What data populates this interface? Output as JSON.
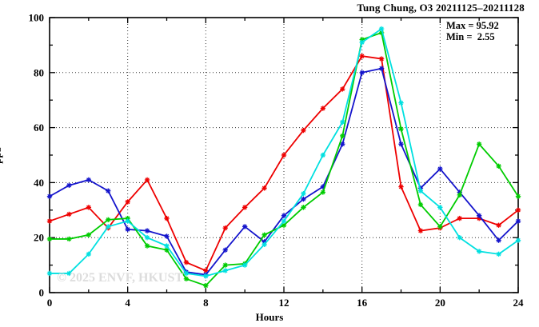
{
  "title": "Tung Chung, O3 20211125–20211128",
  "stats": {
    "max_label": "Max = 95.92",
    "min_label": "Min =  2.55"
  },
  "watermark": "© 2025 ENVF, HKUST",
  "chart_data": {
    "type": "line",
    "title": "Tung Chung, O3 20211125–20211128",
    "xlabel": "Hours",
    "ylabel": "ppb",
    "xlim": [
      0,
      24
    ],
    "ylim": [
      0,
      100
    ],
    "x_ticks": [
      0,
      4,
      8,
      12,
      16,
      20,
      24
    ],
    "x_minor_step": 2,
    "y_ticks": [
      0,
      20,
      40,
      60,
      80,
      100
    ],
    "y_minor_step": 10,
    "grid_x": [
      4,
      8,
      12,
      16,
      20
    ],
    "grid_y": [
      20,
      40,
      60,
      80
    ],
    "legend": "none",
    "marker": "asterisk",
    "annotations": {
      "max": 95.92,
      "min": 2.55
    },
    "x": [
      0,
      1,
      2,
      3,
      4,
      5,
      6,
      7,
      8,
      9,
      10,
      11,
      12,
      13,
      14,
      15,
      16,
      17,
      18,
      19,
      20,
      21,
      22,
      23,
      24
    ],
    "series": [
      {
        "name": "red",
        "color": "#ee0000",
        "values": [
          26,
          28.5,
          31,
          23.5,
          33,
          41,
          27,
          11,
          8,
          23.5,
          31,
          38,
          50,
          59,
          67,
          74,
          86,
          85,
          38.5,
          22.5,
          23.5,
          27,
          27,
          24.5,
          30
        ]
      },
      {
        "name": "blue",
        "color": "#1414cc",
        "values": [
          35,
          39,
          41,
          37,
          23,
          22.5,
          20.5,
          7.5,
          6.5,
          15.5,
          24,
          18.5,
          28,
          34,
          38.5,
          54,
          80,
          81.5,
          54,
          38,
          45,
          36.5,
          28,
          19,
          26
        ]
      },
      {
        "name": "green",
        "color": "#00cc00",
        "values": [
          19.5,
          19.5,
          21,
          26.5,
          27,
          17,
          15.5,
          5,
          2.55,
          10,
          10.5,
          21,
          24.5,
          31,
          36.5,
          57,
          92,
          94.5,
          59.5,
          32,
          24,
          35.5,
          54,
          46,
          35
        ]
      },
      {
        "name": "cyan",
        "color": "#00e0e0",
        "values": [
          7,
          7,
          14,
          24,
          26,
          20,
          17,
          7,
          6,
          8,
          10,
          17.5,
          26,
          36,
          50,
          62,
          91,
          95.92,
          69,
          37,
          31,
          20,
          15,
          14,
          19
        ]
      }
    ]
  }
}
